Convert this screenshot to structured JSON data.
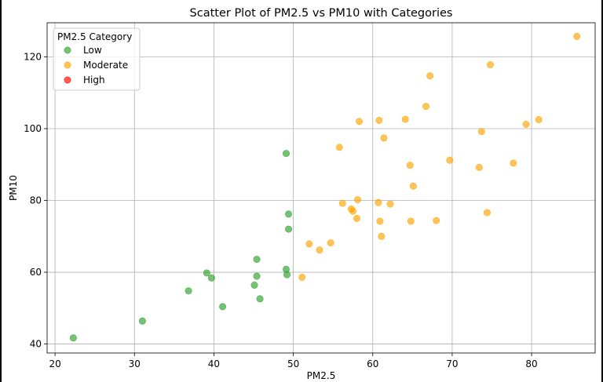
{
  "chart_data": {
    "type": "scatter",
    "title": "Scatter Plot of PM2.5 vs PM10 with Categories",
    "xlabel": "PM2.5",
    "ylabel": "PM10",
    "xlim": [
      19,
      88
    ],
    "ylim": [
      37.5,
      129.5
    ],
    "x_ticks": [
      20,
      30,
      40,
      50,
      60,
      70,
      80
    ],
    "y_ticks": [
      40,
      60,
      80,
      100,
      120
    ],
    "grid": true,
    "legend": {
      "title": "PM2.5 Category",
      "placement": "top-left",
      "entries": [
        "Low",
        "Moderate",
        "High"
      ]
    },
    "series": [
      {
        "name": "Low",
        "color": "#2ca02c",
        "points": [
          [
            22.3,
            41.7
          ],
          [
            31.0,
            46.4
          ],
          [
            36.8,
            54.8
          ],
          [
            39.1,
            59.8
          ],
          [
            39.7,
            58.4
          ],
          [
            41.1,
            50.4
          ],
          [
            45.1,
            56.4
          ],
          [
            45.4,
            58.9
          ],
          [
            45.4,
            63.6
          ],
          [
            45.8,
            52.6
          ],
          [
            49.1,
            60.8
          ],
          [
            49.2,
            59.3
          ],
          [
            49.4,
            72.0
          ],
          [
            49.4,
            76.2
          ],
          [
            49.1,
            93.1
          ]
        ]
      },
      {
        "name": "Moderate",
        "color": "#ffa500",
        "points": [
          [
            51.1,
            58.6
          ],
          [
            52.0,
            67.9
          ],
          [
            53.3,
            66.2
          ],
          [
            54.7,
            68.2
          ],
          [
            55.8,
            94.8
          ],
          [
            56.2,
            79.2
          ],
          [
            57.3,
            77.6
          ],
          [
            57.5,
            77.0
          ],
          [
            58.0,
            75.0
          ],
          [
            58.1,
            80.2
          ],
          [
            58.3,
            102.0
          ],
          [
            60.7,
            79.4
          ],
          [
            60.8,
            102.3
          ],
          [
            60.9,
            74.2
          ],
          [
            61.1,
            70.0
          ],
          [
            61.4,
            97.4
          ],
          [
            62.2,
            79.0
          ],
          [
            64.1,
            102.6
          ],
          [
            64.7,
            89.8
          ],
          [
            64.8,
            74.2
          ],
          [
            65.1,
            84.0
          ],
          [
            66.7,
            106.2
          ],
          [
            67.2,
            114.7
          ],
          [
            68.0,
            74.4
          ],
          [
            69.7,
            91.2
          ],
          [
            73.4,
            89.2
          ],
          [
            73.7,
            99.2
          ],
          [
            74.4,
            76.6
          ],
          [
            74.8,
            117.8
          ],
          [
            77.7,
            90.4
          ],
          [
            79.3,
            101.2
          ],
          [
            80.9,
            102.5
          ],
          [
            85.7,
            125.7
          ]
        ]
      },
      {
        "name": "High",
        "color": "#ff0000",
        "points": []
      }
    ]
  }
}
